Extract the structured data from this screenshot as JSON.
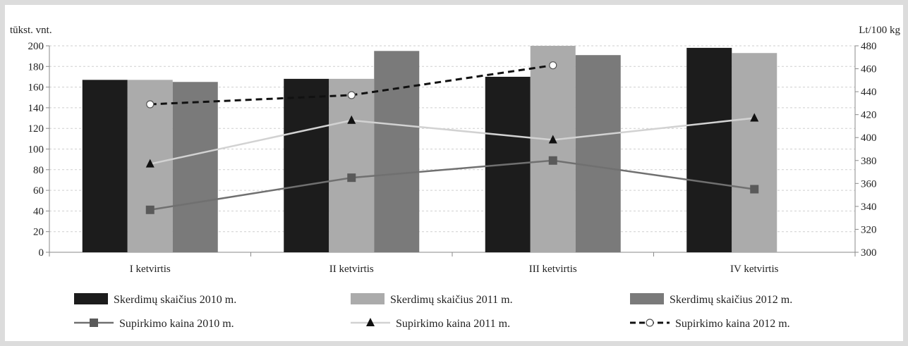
{
  "chart_data": {
    "type": "bar",
    "y_left_label": "tūkst. vnt.",
    "y_right_label": "Lt/100 kg",
    "ylim_left": [
      0,
      200
    ],
    "ylim_right": [
      300,
      480
    ],
    "y_left_ticks": [
      0,
      20,
      40,
      60,
      80,
      100,
      120,
      140,
      160,
      180,
      200
    ],
    "y_right_ticks": [
      300,
      320,
      340,
      360,
      380,
      400,
      420,
      440,
      460,
      480
    ],
    "grid": true,
    "legend_position": "bottom",
    "categories": [
      "I ketvirtis",
      "II ketvirtis",
      "III ketvirtis",
      "IV ketvirtis"
    ],
    "bar_series": [
      {
        "name": "Skerdimų skaičius 2010 m.",
        "color": "#1c1c1c",
        "values": [
          167,
          168,
          170,
          198
        ]
      },
      {
        "name": "Skerdimų skaičius 2011 m.",
        "color": "#ababab",
        "values": [
          167,
          168,
          200,
          193
        ]
      },
      {
        "name": "Skerdimų skaičius 2012 m.",
        "color": "#7a7a7a",
        "values": [
          165,
          195,
          191,
          null
        ]
      }
    ],
    "line_series": [
      {
        "name": "Supirkimo kaina 2010 m.",
        "color": "#707070",
        "marker": "square",
        "dash": false,
        "values": [
          337,
          365,
          380,
          355
        ]
      },
      {
        "name": "Supirkimo kaina 2011 m.",
        "color": "#d2d2d2",
        "marker": "triangle",
        "dash": false,
        "values": [
          377,
          415,
          398,
          417
        ]
      },
      {
        "name": "Supirkimo kaina 2012 m.",
        "color": "#111111",
        "marker": "circle",
        "dash": true,
        "values": [
          429,
          437,
          463,
          null
        ]
      }
    ]
  }
}
